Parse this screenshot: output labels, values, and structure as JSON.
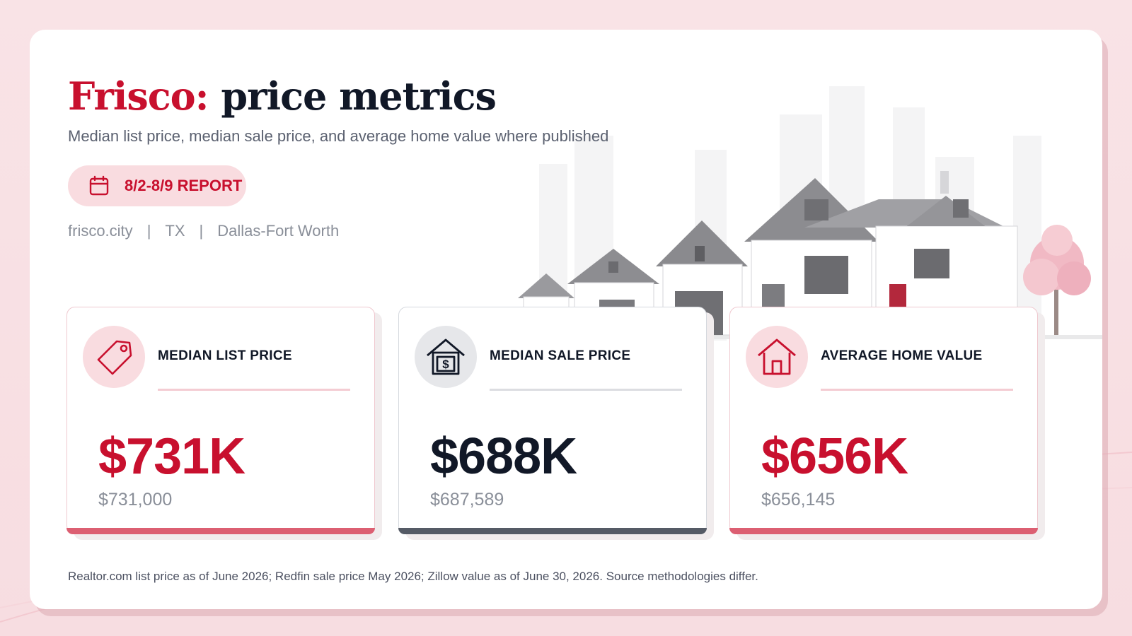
{
  "header": {
    "city": "Frisco:",
    "title_rest": "price metrics",
    "subtitle": "Median list price, median sale price, and average home value where published"
  },
  "report": {
    "label": "8/2-8/9 REPORT",
    "icon": "calendar-icon"
  },
  "meta": {
    "site": "frisco.city",
    "separator": "|",
    "state": "TX",
    "region": "Dallas-Fort Worth"
  },
  "metrics": [
    {
      "label": "MEDIAN LIST PRICE",
      "value": "$731K",
      "exact": "$731,000",
      "icon": "price-tag-icon",
      "accent": "#c8102e"
    },
    {
      "label": "MEDIAN SALE PRICE",
      "value": "$688K",
      "exact": "$687,589",
      "icon": "dollar-house-icon",
      "accent": "#111827"
    },
    {
      "label": "AVERAGE HOME VALUE",
      "value": "$656K",
      "exact": "$656,145",
      "icon": "house-icon",
      "accent": "#c8102e"
    }
  ],
  "footnote": "Realtor.com list price as of June 2026; Redfin sale price May 2026; Zillow value as of June 30, 2026. Source methodologies differ.",
  "colors": {
    "brand_red": "#c8102e",
    "dark_text": "#111827",
    "pink_bg": "#f9dce0",
    "accent_bar_red": "#dc5f72",
    "accent_bar_dark": "#555b66"
  }
}
